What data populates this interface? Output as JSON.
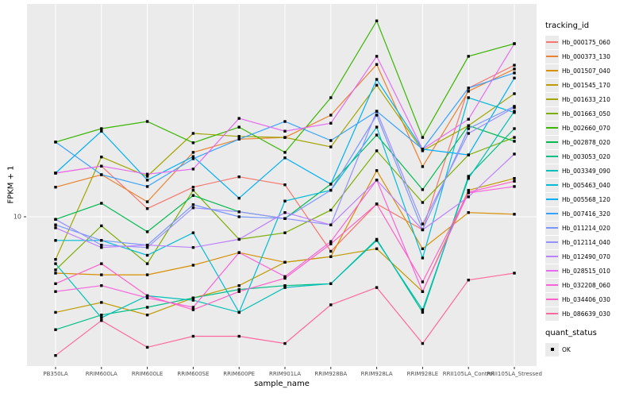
{
  "figure": {
    "x_axis": {
      "title": "sample_name"
    },
    "y_axis": {
      "title": "FPKM + 1"
    },
    "legend": {
      "tracking_title": "tracking_id",
      "quant_title": "quant_status",
      "quant_label": "OK"
    },
    "colors": {
      "panel_bg": "#EBEBEB",
      "grid": "#FFFFFF",
      "tick_text": "#4D4D4D",
      "axis_tick": "#333333",
      "point": "#000000"
    }
  },
  "chart_data": {
    "type": "line",
    "title": "",
    "xlabel": "sample_name",
    "ylabel": "FPKM + 1",
    "y_scale": "log10",
    "ylim": [
      1.8,
      110
    ],
    "y_ticks": [
      {
        "value": 10,
        "label": "10"
      }
    ],
    "grid": "gray-panel-white-lines",
    "legend_position": "right",
    "marker": "black-square",
    "quant_status": {
      "label": "OK",
      "marker": "black-square"
    },
    "categories": [
      "PB350LA",
      "RRIM600LA",
      "RRIM600LE",
      "RRIM600SE",
      "RRIM600PE",
      "RRIM901LA",
      "RRIM928BA",
      "RRIM928LA",
      "RRIM928LE",
      "RRII105LA_Control",
      "RRII105LA_Stressed"
    ],
    "series": [
      {
        "name": "Hb_000175_060",
        "color": "#F8766D",
        "values": [
          16.6,
          18,
          11,
          14.1,
          15.9,
          14.5,
          6.7,
          11.6,
          8.6,
          44.5,
          58
        ]
      },
      {
        "name": "Hb_000373_130",
        "color": "#EA8331",
        "values": [
          14.1,
          16.3,
          11.9,
          21.1,
          24.6,
          25.1,
          32.5,
          58.5,
          17.9,
          42.9,
          55.5
        ]
      },
      {
        "name": "Hb_001507_040",
        "color": "#D89000",
        "values": [
          5.2,
          5.1,
          5.1,
          5.7,
          6.6,
          5.9,
          6.3,
          17.1,
          6.9,
          10.5,
          10.3
        ]
      },
      {
        "name": "Hb_001545_170",
        "color": "#C09B00",
        "values": [
          3.3,
          3.7,
          3.2,
          3.9,
          4.5,
          5.9,
          6.3,
          6.9,
          4.2,
          13.6,
          15.6
        ]
      },
      {
        "name": "Hb_001633_210",
        "color": "#A3A500",
        "values": [
          6.1,
          20,
          16,
          26.3,
          25.4,
          25.1,
          22.5,
          46,
          21.5,
          28.8,
          41.7
        ]
      },
      {
        "name": "Hb_001663_050",
        "color": "#7CAE00",
        "values": [
          5.4,
          9.0,
          5.8,
          13.6,
          7.7,
          8.3,
          10.8,
          21.5,
          11.8,
          20.5,
          25.1
        ]
      },
      {
        "name": "Hb_002660_070",
        "color": "#39B600",
        "values": [
          23.8,
          27.8,
          30.2,
          23.6,
          28.3,
          21.1,
          39.8,
          97,
          25.1,
          64.3,
          74.5
        ]
      },
      {
        "name": "Hb_002878_020",
        "color": "#00BB4E",
        "values": [
          9.7,
          11.7,
          8.4,
          12.8,
          10.6,
          9.8,
          14.6,
          25.8,
          13.7,
          28.8,
          24
        ]
      },
      {
        "name": "Hb_003053_020",
        "color": "#00C087",
        "values": [
          2.7,
          3.2,
          3.5,
          3.9,
          4.3,
          4.5,
          4.6,
          7.7,
          3.3,
          16,
          27.8
        ]
      },
      {
        "name": "Hb_003349_090",
        "color": "#00C0B8",
        "values": [
          5.8,
          3.1,
          4.0,
          3.8,
          3.3,
          4.4,
          4.6,
          7.6,
          3.4,
          15.6,
          34
        ]
      },
      {
        "name": "Hb_005463_040",
        "color": "#00BCD8",
        "values": [
          7.6,
          7.6,
          6.4,
          8.3,
          3.3,
          12,
          13.6,
          28.3,
          6.2,
          39.8,
          33.5
        ]
      },
      {
        "name": "Hb_005568_120",
        "color": "#00B0F6",
        "values": [
          16.6,
          27,
          15.3,
          20.1,
          12.4,
          19.8,
          14.6,
          49.2,
          21.9,
          20.5,
          50
        ]
      },
      {
        "name": "Hb_007416_320",
        "color": "#35A2FF",
        "values": [
          23.8,
          16.3,
          14.2,
          19.6,
          24.6,
          30.2,
          24.2,
          34,
          21.9,
          44.5,
          53
        ]
      },
      {
        "name": "Hb_011214_020",
        "color": "#7997FF",
        "values": [
          9.1,
          7.6,
          7.2,
          11.5,
          10,
          9.8,
          13.6,
          32.5,
          8.6,
          27.8,
          36
        ]
      },
      {
        "name": "Hb_012114_040",
        "color": "#9590FF",
        "values": [
          9.7,
          7.2,
          7.0,
          11.1,
          10.6,
          9.8,
          9.1,
          34,
          9.2,
          26.3,
          35.5
        ]
      },
      {
        "name": "Hb_012490_070",
        "color": "#BC81FF",
        "values": [
          8.8,
          7.0,
          7.2,
          7.0,
          7.7,
          10.5,
          9.1,
          15.3,
          8.6,
          12.6,
          20.7
        ]
      },
      {
        "name": "Hb_028515_010",
        "color": "#E76BF3",
        "values": [
          16.6,
          18,
          16.4,
          17.4,
          31.3,
          27,
          29.6,
          64.3,
          21.9,
          31,
          74.5
        ]
      },
      {
        "name": "Hb_032208_060",
        "color": "#FA62DB",
        "values": [
          4.2,
          4.5,
          3.9,
          3.5,
          6.6,
          5.0,
          7.5,
          15.3,
          4.2,
          13.2,
          14.2
        ]
      },
      {
        "name": "Hb_034406_030",
        "color": "#FF61C9",
        "values": [
          4.6,
          5.8,
          4.0,
          3.4,
          4.2,
          4.9,
          7.3,
          11.6,
          4.7,
          13.3,
          15.1
        ]
      },
      {
        "name": "Hb_086639_030",
        "color": "#FF689E",
        "values": [
          2.0,
          3.0,
          2.2,
          2.5,
          2.5,
          2.3,
          3.6,
          4.4,
          2.3,
          4.8,
          5.2
        ]
      }
    ]
  }
}
